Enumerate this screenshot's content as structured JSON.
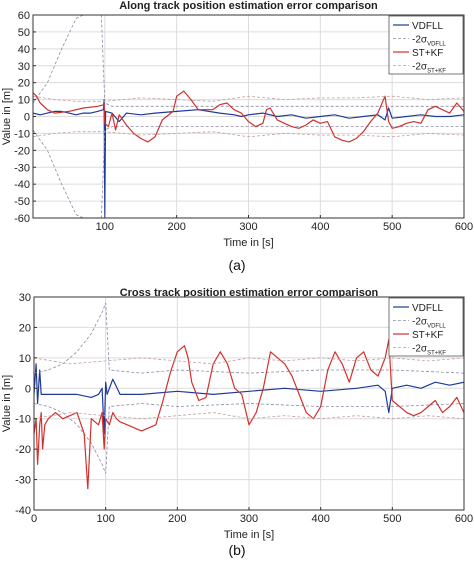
{
  "chart_data": [
    {
      "type": "line",
      "panel": "(a)",
      "title": "Along track position estimation error comparison",
      "xlabel": "Time in [s]",
      "ylabel": "Value in [m]",
      "xlim": [
        0,
        600
      ],
      "ylim": [
        -60,
        60
      ],
      "xticks": [
        "100",
        "200",
        "300",
        "400",
        "500",
        "600"
      ],
      "yticks": [
        "60",
        "50",
        "40",
        "30",
        "20",
        "10",
        "0",
        "-10",
        "-20",
        "-30",
        "-40",
        "-50",
        "-60"
      ],
      "grid": true,
      "legend_position": "top-right",
      "legend": [
        {
          "main": "VDFLL",
          "sub": "",
          "color": "#1f3b9a",
          "dash": "solid"
        },
        {
          "main": "-2σ",
          "sub": "VDFLL",
          "color": "#8a8aa8",
          "dash": "dashed"
        },
        {
          "main": "ST+KF",
          "sub": "",
          "color": "#d0312d",
          "dash": "solid"
        },
        {
          "main": "-2σ",
          "sub": "ST+KF",
          "color": "#c0a0a0",
          "dash": "dashed"
        }
      ],
      "series": [
        {
          "name": "VDFLL",
          "color": "#1f3b9a",
          "dash": "solid",
          "width": 1.2,
          "x": [
            0,
            10,
            20,
            30,
            40,
            50,
            60,
            70,
            80,
            90,
            98,
            99,
            100,
            101,
            110,
            120,
            130,
            150,
            170,
            200,
            230,
            260,
            280,
            290,
            300,
            320,
            340,
            360,
            380,
            400,
            420,
            440,
            460,
            480,
            490,
            495,
            500,
            520,
            540,
            560,
            580,
            600
          ],
          "y": [
            2,
            1,
            2,
            3,
            3,
            2,
            1,
            2,
            2,
            3,
            4,
            10,
            -58,
            3,
            2,
            -3,
            2,
            1,
            2,
            3,
            4,
            2,
            1,
            0,
            1,
            2,
            0,
            1,
            -1,
            0,
            1,
            -1,
            0,
            1,
            -2,
            5,
            -1,
            0,
            1,
            0,
            0,
            1
          ]
        },
        {
          "name": "VDFLL +2σ",
          "color": "#8a8aa8",
          "dash": "dashed",
          "width": 0.8,
          "x": [
            0,
            20,
            40,
            60,
            80,
            95,
            100,
            110,
            150,
            200,
            300,
            400,
            500,
            600
          ],
          "y": [
            8,
            20,
            40,
            58,
            62,
            62,
            8,
            6,
            6,
            6,
            6,
            6,
            6,
            6
          ]
        },
        {
          "name": "VDFLL -2σ",
          "color": "#8a8aa8",
          "dash": "dashed",
          "width": 0.8,
          "x": [
            0,
            20,
            40,
            60,
            80,
            95,
            100,
            110,
            150,
            200,
            300,
            400,
            500,
            600
          ],
          "y": [
            -8,
            -20,
            -40,
            -58,
            -62,
            -62,
            -8,
            -6,
            -6,
            -6,
            -6,
            -6,
            -6,
            -6
          ]
        },
        {
          "name": "ST+KF",
          "color": "#d0312d",
          "dash": "solid",
          "width": 1.2,
          "x": [
            0,
            5,
            10,
            20,
            30,
            50,
            70,
            90,
            99,
            100,
            105,
            110,
            115,
            120,
            130,
            140,
            150,
            160,
            170,
            180,
            195,
            200,
            210,
            220,
            230,
            240,
            250,
            260,
            270,
            280,
            290,
            300,
            310,
            320,
            325,
            330,
            340,
            350,
            360,
            370,
            380,
            390,
            400,
            410,
            420,
            430,
            440,
            450,
            460,
            470,
            480,
            490,
            495,
            500,
            510,
            520,
            530,
            540,
            550,
            560,
            570,
            580,
            590,
            600
          ],
          "y": [
            14,
            12,
            8,
            4,
            2,
            3,
            5,
            6,
            7,
            -4,
            -6,
            2,
            -8,
            1,
            -5,
            -10,
            -13,
            -15,
            -12,
            -2,
            3,
            12,
            15,
            10,
            4,
            4,
            4,
            7,
            8,
            4,
            2,
            -3,
            -6,
            -4,
            4,
            5,
            -2,
            -4,
            -6,
            -7,
            -5,
            -2,
            -4,
            -3,
            -12,
            -14,
            -15,
            -13,
            -9,
            -3,
            2,
            12,
            -3,
            -7,
            -6,
            -4,
            -3,
            -4,
            4,
            6,
            4,
            2,
            8,
            3
          ]
        },
        {
          "name": "ST+KF +2σ",
          "color": "#c0a0a0",
          "dash": "dashed",
          "width": 0.8,
          "x": [
            0,
            30,
            60,
            100,
            150,
            200,
            250,
            300,
            350,
            400,
            450,
            500,
            550,
            600
          ],
          "y": [
            12,
            10,
            9,
            9,
            11,
            10,
            9,
            12,
            10,
            11,
            11,
            12,
            10,
            11
          ]
        },
        {
          "name": "ST+KF -2σ",
          "color": "#c0a0a0",
          "dash": "dashed",
          "width": 0.8,
          "x": [
            0,
            30,
            60,
            100,
            150,
            200,
            250,
            300,
            350,
            400,
            450,
            500,
            550,
            600
          ],
          "y": [
            -12,
            -10,
            -9,
            -9,
            -11,
            -10,
            -9,
            -12,
            -10,
            -11,
            -11,
            -12,
            -10,
            -11
          ]
        }
      ]
    },
    {
      "type": "line",
      "panel": "(b)",
      "title": "Cross track position estimation error comparison",
      "xlabel": "Time in [s]",
      "ylabel": "Value in [m]",
      "xlim": [
        0,
        600
      ],
      "ylim": [
        -40,
        30
      ],
      "xticks": [
        "0",
        "100",
        "200",
        "300",
        "400",
        "500",
        "600"
      ],
      "yticks": [
        "30",
        "20",
        "10",
        "0",
        "-10",
        "-20",
        "-30",
        "-40"
      ],
      "grid": true,
      "legend_position": "top-right",
      "legend": [
        {
          "main": "VDFLL",
          "sub": "",
          "color": "#1f3b9a",
          "dash": "solid"
        },
        {
          "main": "-2σ",
          "sub": "VDFLL",
          "color": "#8a8aa8",
          "dash": "dashed"
        },
        {
          "main": "ST+KF",
          "sub": "",
          "color": "#d0312d",
          "dash": "solid"
        },
        {
          "main": "-2σ",
          "sub": "ST+KF",
          "color": "#c0a0a0",
          "dash": "dashed"
        }
      ],
      "series": [
        {
          "name": "VDFLL",
          "color": "#1f3b9a",
          "dash": "solid",
          "width": 1.2,
          "x": [
            0,
            3,
            5,
            8,
            10,
            20,
            40,
            60,
            80,
            90,
            95,
            98,
            100,
            102,
            110,
            118,
            120,
            130,
            150,
            200,
            250,
            300,
            350,
            400,
            450,
            480,
            490,
            495,
            500,
            520,
            540,
            560,
            580,
            600
          ],
          "y": [
            -2,
            8,
            -5,
            6,
            -2,
            -2,
            -2,
            -2,
            -3,
            -2,
            0,
            -15,
            2,
            -2,
            3,
            -1,
            -2,
            -2,
            -2,
            -1,
            -2,
            -1,
            0,
            -1,
            0,
            1,
            -1,
            -8,
            0,
            1,
            0,
            2,
            1,
            2
          ]
        },
        {
          "name": "VDFLL +2σ",
          "color": "#8a8aa8",
          "dash": "dashed",
          "width": 0.8,
          "x": [
            0,
            20,
            40,
            60,
            80,
            95,
            100,
            105,
            150,
            200,
            300,
            400,
            500,
            600
          ],
          "y": [
            5,
            6,
            8,
            12,
            18,
            25,
            28,
            6,
            5,
            6,
            5,
            6,
            6,
            5
          ]
        },
        {
          "name": "VDFLL -2σ",
          "color": "#8a8aa8",
          "dash": "dashed",
          "width": 0.8,
          "x": [
            0,
            20,
            40,
            60,
            80,
            95,
            100,
            105,
            150,
            200,
            300,
            400,
            500,
            600
          ],
          "y": [
            -5,
            -6,
            -8,
            -12,
            -18,
            -25,
            -28,
            -6,
            -5,
            -6,
            -5,
            -6,
            -6,
            -5
          ]
        },
        {
          "name": "ST+KF",
          "color": "#d0312d",
          "dash": "solid",
          "width": 1.2,
          "x": [
            0,
            3,
            5,
            8,
            10,
            12,
            15,
            20,
            30,
            40,
            50,
            60,
            70,
            75,
            80,
            90,
            95,
            98,
            100,
            105,
            110,
            115,
            120,
            130,
            150,
            170,
            180,
            190,
            200,
            210,
            215,
            220,
            230,
            240,
            250,
            260,
            270,
            280,
            290,
            300,
            310,
            320,
            330,
            340,
            350,
            360,
            370,
            380,
            390,
            400,
            410,
            420,
            430,
            440,
            450,
            460,
            470,
            480,
            490,
            495,
            500,
            510,
            520,
            530,
            540,
            550,
            560,
            570,
            580,
            590,
            600
          ],
          "y": [
            -15,
            -10,
            -25,
            -12,
            -8,
            -20,
            -12,
            -10,
            -8,
            -10,
            -9,
            -8,
            -15,
            -33,
            -10,
            -12,
            -8,
            -20,
            -10,
            -12,
            -8,
            -10,
            -11,
            -12,
            -14,
            -12,
            -4,
            5,
            12,
            14,
            10,
            2,
            -4,
            -3,
            8,
            12,
            8,
            0,
            -2,
            -12,
            -8,
            0,
            12,
            10,
            8,
            4,
            -2,
            -8,
            -10,
            -6,
            6,
            12,
            8,
            2,
            10,
            12,
            6,
            4,
            10,
            16,
            -4,
            -6,
            -8,
            -9,
            -8,
            -6,
            -4,
            -8,
            -6,
            -3,
            -8
          ]
        },
        {
          "name": "ST+KF +2σ",
          "color": "#c0a0a0",
          "dash": "dashed",
          "width": 0.8,
          "x": [
            0,
            50,
            100,
            150,
            200,
            250,
            300,
            350,
            400,
            450,
            500,
            550,
            600
          ],
          "y": [
            10,
            8,
            9,
            10,
            9,
            8,
            10,
            9,
            10,
            9,
            10,
            9,
            10
          ]
        },
        {
          "name": "ST+KF -2σ",
          "color": "#c0a0a0",
          "dash": "dashed",
          "width": 0.8,
          "x": [
            0,
            50,
            100,
            150,
            200,
            250,
            300,
            350,
            400,
            450,
            500,
            550,
            600
          ],
          "y": [
            -10,
            -8,
            -9,
            -10,
            -9,
            -8,
            -10,
            -9,
            -10,
            -9,
            -10,
            -9,
            -10
          ]
        }
      ]
    }
  ]
}
